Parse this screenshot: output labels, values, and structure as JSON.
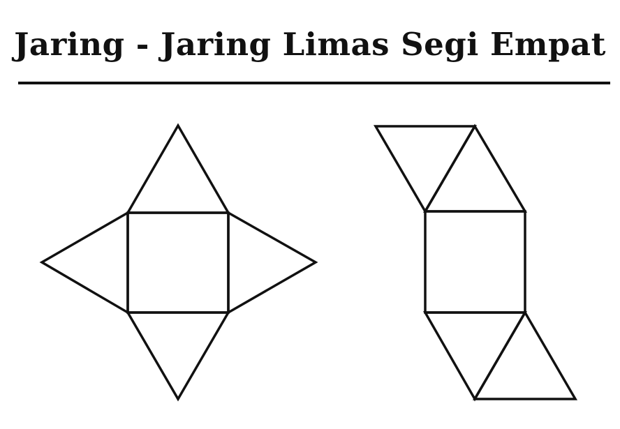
{
  "title": "Jaring - Jaring Limas Segi Empat",
  "colors": {
    "ink": "#111111",
    "background": "#ffffff"
  },
  "nets": [
    {
      "id": "net-cross",
      "faces": [
        "square",
        "triangle",
        "triangle",
        "triangle",
        "triangle"
      ]
    },
    {
      "id": "net-zigzag",
      "faces": [
        "square",
        "triangle",
        "triangle",
        "triangle",
        "triangle"
      ]
    }
  ]
}
